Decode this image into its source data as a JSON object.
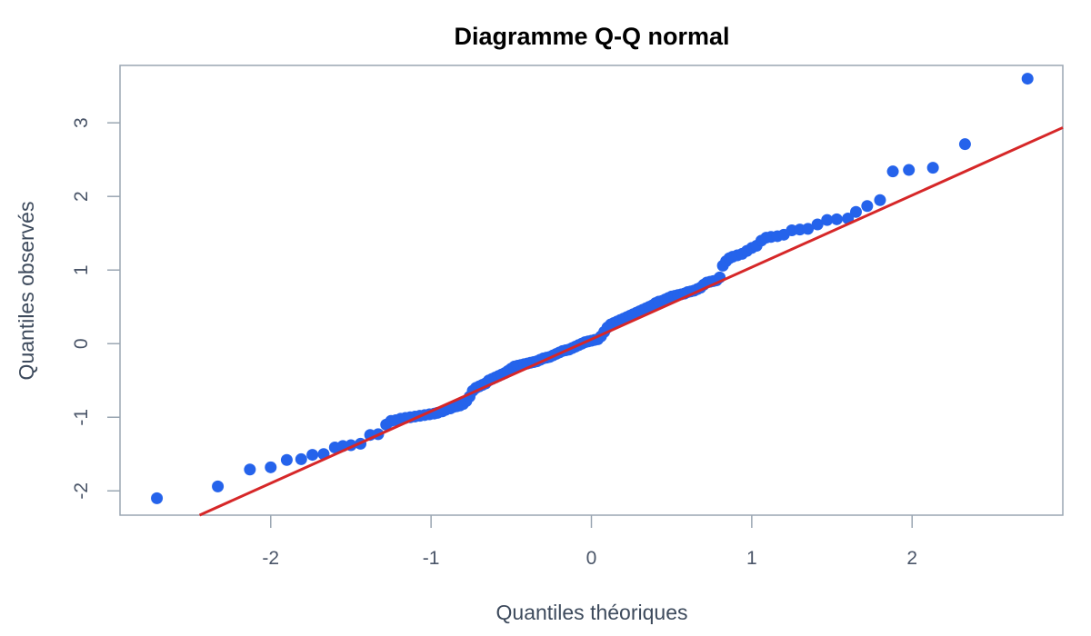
{
  "chart_data": {
    "type": "scatter",
    "title": "Diagramme Q-Q normal",
    "xlabel": "Quantiles théoriques",
    "ylabel": "Quantiles observés",
    "xlim": [
      -2.94,
      2.94
    ],
    "ylim": [
      -2.33,
      3.78
    ],
    "x_ticks": [
      -2,
      -1,
      0,
      1,
      2
    ],
    "y_ticks": [
      -2,
      -1,
      0,
      1,
      2,
      3
    ],
    "x_tick_labels": [
      "-2",
      "-1",
      "0",
      "1",
      "2"
    ],
    "y_tick_labels": [
      "-2",
      "-1",
      "0",
      "1",
      "2",
      "3"
    ],
    "grid": false,
    "colors": {
      "points": "#2563eb",
      "line": "#d62728",
      "frame": "#9aa6b2",
      "text": "#4a5568"
    },
    "reference_line": {
      "slope": 0.978,
      "intercept": 0.06
    },
    "points": [
      [
        -2.71,
        -2.1
      ],
      [
        -2.33,
        -1.94
      ],
      [
        -2.13,
        -1.71
      ],
      [
        -2.0,
        -1.68
      ],
      [
        -1.9,
        -1.58
      ],
      [
        -1.81,
        -1.57
      ],
      [
        -1.74,
        -1.51
      ],
      [
        -1.67,
        -1.5
      ],
      [
        -1.6,
        -1.41
      ],
      [
        -1.55,
        -1.39
      ],
      [
        -1.5,
        -1.38
      ],
      [
        -1.44,
        -1.36
      ],
      [
        -1.38,
        -1.24
      ],
      [
        -1.33,
        -1.23
      ],
      [
        -1.28,
        -1.1
      ],
      [
        -1.25,
        -1.05
      ],
      [
        -1.22,
        -1.04
      ],
      [
        -1.19,
        -1.02
      ],
      [
        -1.16,
        -1.01
      ],
      [
        -1.13,
        -1.0
      ],
      [
        -1.1,
        -0.99
      ],
      [
        -1.07,
        -0.98
      ],
      [
        -1.04,
        -0.97
      ],
      [
        -1.01,
        -0.96
      ],
      [
        -0.98,
        -0.95
      ],
      [
        -0.96,
        -0.94
      ],
      [
        -0.93,
        -0.92
      ],
      [
        -0.91,
        -0.9
      ],
      [
        -0.88,
        -0.88
      ],
      [
        -0.86,
        -0.86
      ],
      [
        -0.84,
        -0.85
      ],
      [
        -0.82,
        -0.84
      ],
      [
        -0.8,
        -0.82
      ],
      [
        -0.78,
        -0.78
      ],
      [
        -0.76,
        -0.72
      ],
      [
        -0.74,
        -0.64
      ],
      [
        -0.72,
        -0.6
      ],
      [
        -0.7,
        -0.58
      ],
      [
        -0.68,
        -0.56
      ],
      [
        -0.66,
        -0.54
      ],
      [
        -0.64,
        -0.5
      ],
      [
        -0.62,
        -0.48
      ],
      [
        -0.6,
        -0.46
      ],
      [
        -0.58,
        -0.44
      ],
      [
        -0.56,
        -0.42
      ],
      [
        -0.54,
        -0.4
      ],
      [
        -0.52,
        -0.37
      ],
      [
        -0.5,
        -0.34
      ],
      [
        -0.48,
        -0.31
      ],
      [
        -0.46,
        -0.3
      ],
      [
        -0.44,
        -0.29
      ],
      [
        -0.42,
        -0.28
      ],
      [
        -0.4,
        -0.27
      ],
      [
        -0.38,
        -0.26
      ],
      [
        -0.36,
        -0.25
      ],
      [
        -0.34,
        -0.24
      ],
      [
        -0.32,
        -0.22
      ],
      [
        -0.3,
        -0.2
      ],
      [
        -0.28,
        -0.19
      ],
      [
        -0.26,
        -0.18
      ],
      [
        -0.24,
        -0.16
      ],
      [
        -0.22,
        -0.14
      ],
      [
        -0.2,
        -0.12
      ],
      [
        -0.18,
        -0.1
      ],
      [
        -0.16,
        -0.09
      ],
      [
        -0.14,
        -0.08
      ],
      [
        -0.12,
        -0.06
      ],
      [
        -0.1,
        -0.04
      ],
      [
        -0.08,
        -0.02
      ],
      [
        -0.06,
        0.0
      ],
      [
        -0.04,
        0.02
      ],
      [
        -0.02,
        0.03
      ],
      [
        0.0,
        0.04
      ],
      [
        0.02,
        0.05
      ],
      [
        0.04,
        0.06
      ],
      [
        0.06,
        0.1
      ],
      [
        0.08,
        0.16
      ],
      [
        0.1,
        0.22
      ],
      [
        0.12,
        0.26
      ],
      [
        0.14,
        0.28
      ],
      [
        0.16,
        0.3
      ],
      [
        0.18,
        0.32
      ],
      [
        0.2,
        0.34
      ],
      [
        0.22,
        0.36
      ],
      [
        0.24,
        0.38
      ],
      [
        0.26,
        0.4
      ],
      [
        0.28,
        0.42
      ],
      [
        0.3,
        0.44
      ],
      [
        0.32,
        0.46
      ],
      [
        0.34,
        0.48
      ],
      [
        0.36,
        0.5
      ],
      [
        0.38,
        0.52
      ],
      [
        0.4,
        0.55
      ],
      [
        0.42,
        0.57
      ],
      [
        0.44,
        0.58
      ],
      [
        0.46,
        0.6
      ],
      [
        0.48,
        0.62
      ],
      [
        0.5,
        0.64
      ],
      [
        0.52,
        0.65
      ],
      [
        0.54,
        0.66
      ],
      [
        0.56,
        0.67
      ],
      [
        0.58,
        0.68
      ],
      [
        0.6,
        0.7
      ],
      [
        0.62,
        0.71
      ],
      [
        0.64,
        0.72
      ],
      [
        0.66,
        0.74
      ],
      [
        0.68,
        0.76
      ],
      [
        0.7,
        0.8
      ],
      [
        0.72,
        0.83
      ],
      [
        0.74,
        0.84
      ],
      [
        0.76,
        0.85
      ],
      [
        0.78,
        0.86
      ],
      [
        0.8,
        0.9
      ],
      [
        0.82,
        1.06
      ],
      [
        0.84,
        1.12
      ],
      [
        0.86,
        1.16
      ],
      [
        0.88,
        1.18
      ],
      [
        0.91,
        1.2
      ],
      [
        0.94,
        1.22
      ],
      [
        0.97,
        1.26
      ],
      [
        1.0,
        1.3
      ],
      [
        1.03,
        1.33
      ],
      [
        1.06,
        1.4
      ],
      [
        1.09,
        1.44
      ],
      [
        1.12,
        1.45
      ],
      [
        1.16,
        1.46
      ],
      [
        1.2,
        1.48
      ],
      [
        1.25,
        1.54
      ],
      [
        1.3,
        1.55
      ],
      [
        1.35,
        1.56
      ],
      [
        1.41,
        1.62
      ],
      [
        1.47,
        1.68
      ],
      [
        1.53,
        1.69
      ],
      [
        1.6,
        1.7
      ],
      [
        1.65,
        1.79
      ],
      [
        1.72,
        1.87
      ],
      [
        1.8,
        1.95
      ],
      [
        1.88,
        2.34
      ],
      [
        1.98,
        2.36
      ],
      [
        2.13,
        2.39
      ],
      [
        2.33,
        2.71
      ],
      [
        2.72,
        3.6
      ]
    ]
  }
}
